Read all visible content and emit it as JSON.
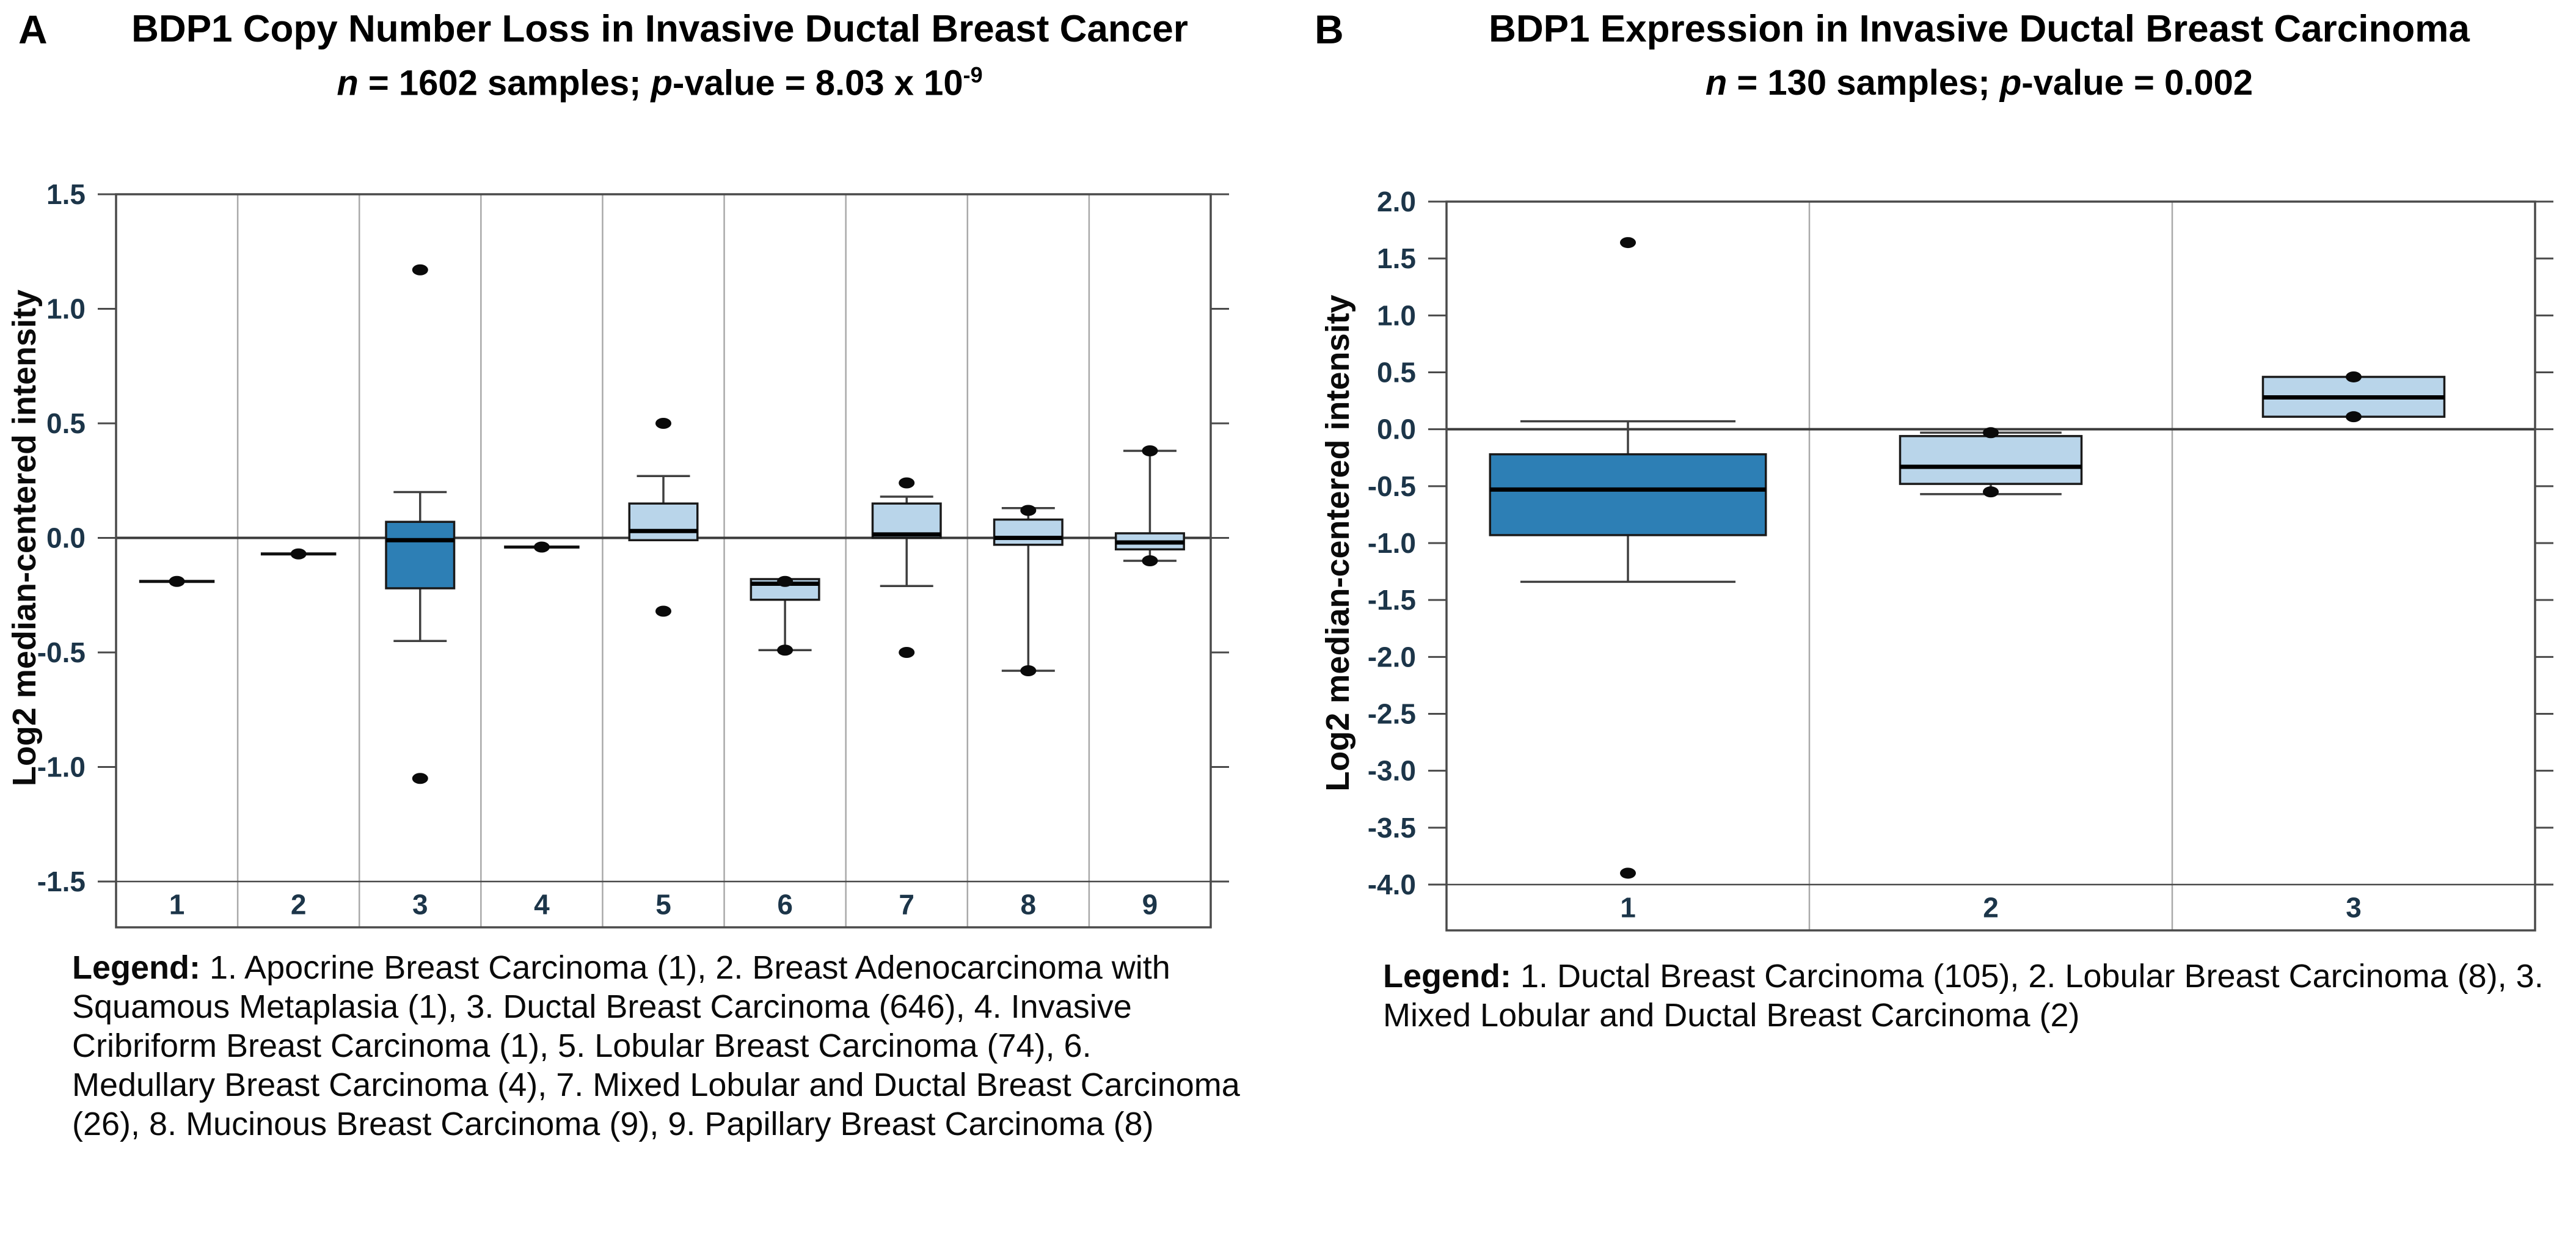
{
  "page": {
    "background": "#ffffff"
  },
  "colors": {
    "dark_box": "#2d7fb5",
    "light_box": "#b9d5ea",
    "box_stroke": "#1a1a1a",
    "median": "#000000",
    "whisker": "#3f3f3f",
    "grid": "#a9a9a9",
    "border": "#4a4a4a",
    "zero_line": "#3a3a3a",
    "tick_label": "#1c3549",
    "category_label": "#1c3549",
    "dot": "#0a0a0a",
    "text": "#000000"
  },
  "chart_data": [
    {
      "type": "box",
      "panel_letter": "A",
      "title": "BDP1 Copy Number Loss in Invasive Ductal Breast Cancer",
      "subtitle_parts": [
        {
          "text": "n",
          "italic": true
        },
        {
          "text": " = 1602 samples; "
        },
        {
          "text": "p",
          "italic": true
        },
        {
          "text": "-value = 8.03 x 10"
        },
        {
          "text": "-9",
          "sup": true
        }
      ],
      "ylabel": "Log2 median-centered intensity",
      "ylim": [
        -1.5,
        1.5
      ],
      "ytick_step": 0.5,
      "zero_line": 0,
      "grid": true,
      "legend_label": "Legend:",
      "legend_text": " 1. Apocrine Breast Carcinoma (1), 2. Breast Adenocarcinoma with Squamous Metaplasia (1), 3. Ductal Breast Carcinoma (646), 4. Invasive Cribriform Breast Carcinoma (1), 5. Lobular Breast Carcinoma (74), 6. Medullary Breast Carcinoma (4), 7. Mixed Lobular and Ductal Breast Carcinoma (26), 8. Mucinous Breast Carcinoma (9), 9. Papillary Breast Carcinoma (8)",
      "categories": [
        "1",
        "2",
        "3",
        "4",
        "5",
        "6",
        "7",
        "8",
        "9"
      ],
      "groups": [
        {
          "cat": "1",
          "kind": "line",
          "value": -0.19,
          "w": 0.62
        },
        {
          "cat": "2",
          "kind": "line",
          "value": -0.07,
          "w": 0.62
        },
        {
          "cat": "3",
          "kind": "box",
          "fill": "dark",
          "w": 0.56,
          "q1": -0.22,
          "med": -0.01,
          "q3": 0.07,
          "whisker_high": 0.2,
          "whisker_low": -0.45,
          "dots": [
            1.17,
            -1.05
          ]
        },
        {
          "cat": "4",
          "kind": "line",
          "value": -0.04,
          "w": 0.62
        },
        {
          "cat": "5",
          "kind": "box",
          "fill": "light",
          "w": 0.56,
          "q1": -0.01,
          "med": 0.03,
          "q3": 0.15,
          "whisker_high": 0.27,
          "whisker_low": null,
          "dots": [
            0.5,
            -0.32
          ]
        },
        {
          "cat": "6",
          "kind": "box",
          "fill": "light",
          "w": 0.56,
          "q1": -0.27,
          "med": -0.2,
          "q3": -0.18,
          "whisker_high": null,
          "whisker_low": -0.49,
          "dots": [
            -0.19,
            -0.49
          ]
        },
        {
          "cat": "7",
          "kind": "box",
          "fill": "light",
          "w": 0.56,
          "q1": 0.0,
          "med": 0.015,
          "q3": 0.15,
          "whisker_high": 0.18,
          "whisker_low": -0.21,
          "dots": [
            0.24,
            -0.5
          ]
        },
        {
          "cat": "8",
          "kind": "box",
          "fill": "light",
          "w": 0.56,
          "q1": -0.03,
          "med": 0.0,
          "q3": 0.08,
          "whisker_high": 0.13,
          "whisker_low": -0.58,
          "dots": [
            0.12,
            -0.58
          ]
        },
        {
          "cat": "9",
          "kind": "box",
          "fill": "light",
          "w": 0.56,
          "q1": -0.05,
          "med": -0.02,
          "q3": 0.02,
          "whisker_high": 0.38,
          "whisker_low": -0.1,
          "dots": [
            0.38,
            -0.1
          ]
        }
      ]
    },
    {
      "type": "box",
      "panel_letter": "B",
      "title": "BDP1 Expression in Invasive Ductal Breast Carcinoma",
      "subtitle_parts": [
        {
          "text": "n",
          "italic": true
        },
        {
          "text": " = 130 samples; "
        },
        {
          "text": "p",
          "italic": true
        },
        {
          "text": "-value = 0.002"
        }
      ],
      "ylabel": "Log2 median-centered intensity",
      "ylim": [
        -4.0,
        2.0
      ],
      "ytick_step": 0.5,
      "zero_line": 0,
      "grid": true,
      "legend_label": "Legend:",
      "legend_text": " 1. Ductal Breast Carcinoma (105), 2. Lobular Breast Carcinoma (8), 3. Mixed Lobular and Ductal Breast Carcinoma (2)",
      "categories": [
        "1",
        "2",
        "3"
      ],
      "groups": [
        {
          "cat": "1",
          "kind": "box",
          "fill": "dark",
          "w": 0.76,
          "q1": -0.93,
          "med": -0.53,
          "q3": -0.22,
          "whisker_high": 0.07,
          "whisker_low": -1.34,
          "dots": [
            1.64,
            -3.9
          ]
        },
        {
          "cat": "2",
          "kind": "box",
          "fill": "light",
          "w": 0.5,
          "q1": -0.48,
          "med": -0.33,
          "q3": -0.06,
          "whisker_high": -0.03,
          "whisker_low": -0.57,
          "dots": [
            -0.03,
            -0.55
          ]
        },
        {
          "cat": "3",
          "kind": "box",
          "fill": "light",
          "w": 0.5,
          "q1": 0.11,
          "med": 0.28,
          "q3": 0.46,
          "whisker_high": null,
          "whisker_low": null,
          "dots": [
            0.46,
            0.11
          ]
        }
      ]
    }
  ]
}
